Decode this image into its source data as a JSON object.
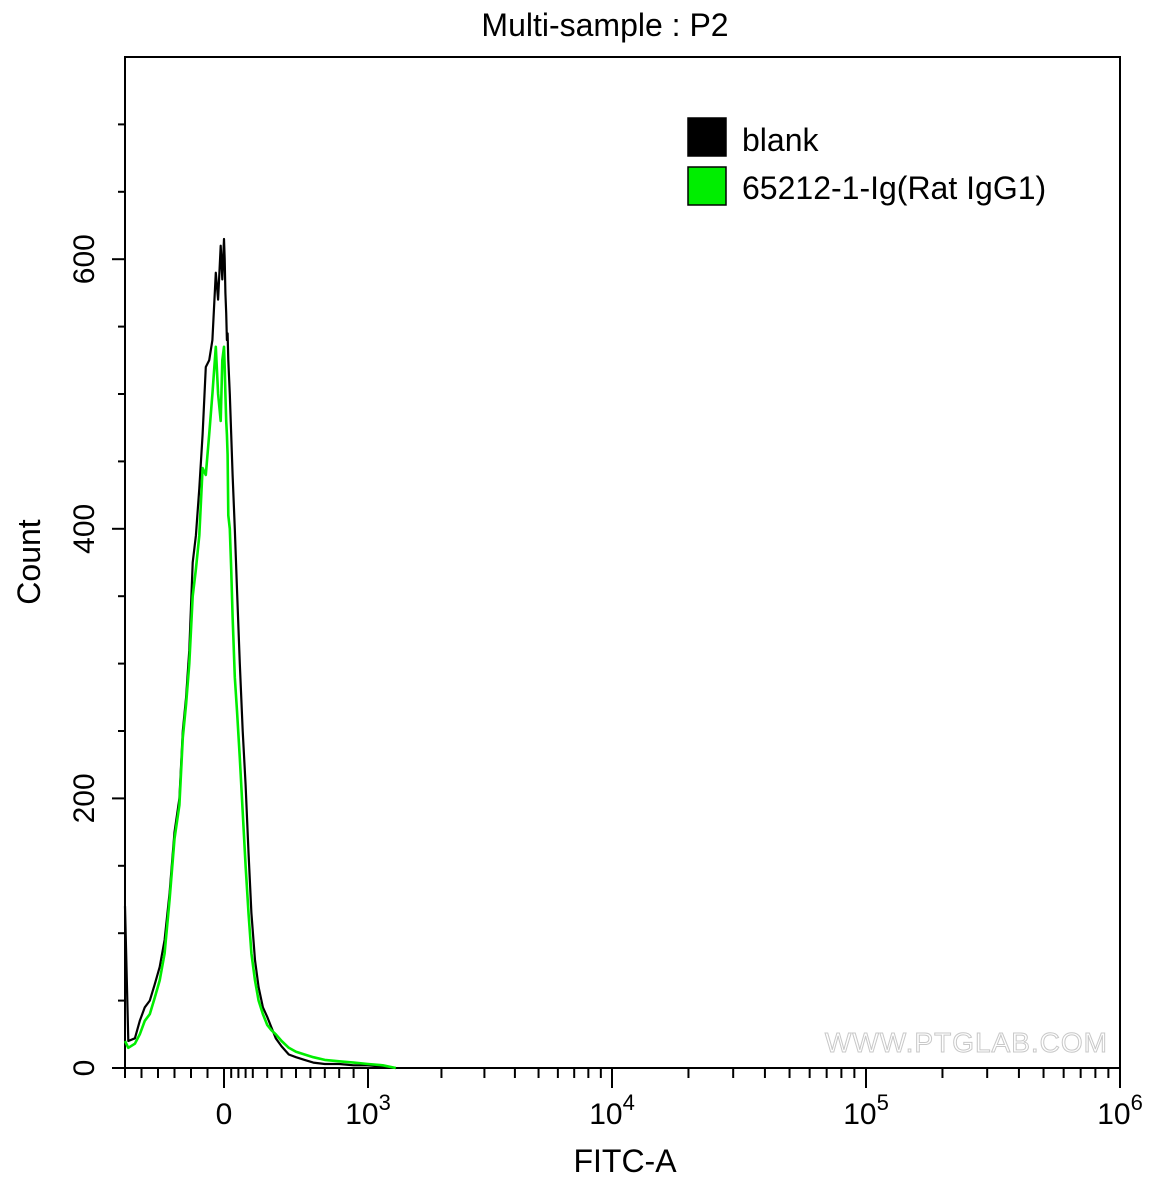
{
  "chart_data": {
    "type": "line",
    "title": "Multi-sample : P2",
    "xlabel": "FITC-A",
    "ylabel": "Count",
    "x_scale": "biexponential",
    "xlim": [
      -300,
      1000000
    ],
    "ylim": [
      0,
      750
    ],
    "x_ticks": [
      {
        "value": 0,
        "label": "0"
      },
      {
        "value": 1000,
        "label": "10",
        "sup": "3"
      },
      {
        "value": 10000,
        "label": "10",
        "sup": "4"
      },
      {
        "value": 100000,
        "label": "10",
        "sup": "5"
      },
      {
        "value": 1000000,
        "label": "10",
        "sup": "6"
      }
    ],
    "y_ticks": [
      0,
      200,
      400,
      600
    ],
    "grid": false,
    "legend_position": "top-right",
    "watermark": "WWW.PTGLAB.COM",
    "series": [
      {
        "name": "blank",
        "color": "#000000",
        "points": [
          [
            -300,
            120
          ],
          [
            -290,
            20
          ],
          [
            -270,
            22
          ],
          [
            -255,
            35
          ],
          [
            -240,
            45
          ],
          [
            -225,
            50
          ],
          [
            -210,
            62
          ],
          [
            -195,
            75
          ],
          [
            -180,
            95
          ],
          [
            -165,
            130
          ],
          [
            -150,
            175
          ],
          [
            -135,
            200
          ],
          [
            -125,
            250
          ],
          [
            -115,
            275
          ],
          [
            -105,
            310
          ],
          [
            -95,
            375
          ],
          [
            -85,
            395
          ],
          [
            -75,
            430
          ],
          [
            -65,
            470
          ],
          [
            -55,
            520
          ],
          [
            -45,
            525
          ],
          [
            -35,
            540
          ],
          [
            -25,
            590
          ],
          [
            -18,
            570
          ],
          [
            -10,
            610
          ],
          [
            -5,
            585
          ],
          [
            0,
            615
          ],
          [
            5,
            600
          ],
          [
            10,
            575
          ],
          [
            15,
            560
          ],
          [
            20,
            540
          ],
          [
            25,
            545
          ],
          [
            30,
            525
          ],
          [
            40,
            500
          ],
          [
            50,
            470
          ],
          [
            60,
            440
          ],
          [
            75,
            400
          ],
          [
            90,
            355
          ],
          [
            110,
            300
          ],
          [
            130,
            250
          ],
          [
            150,
            210
          ],
          [
            170,
            160
          ],
          [
            190,
            115
          ],
          [
            215,
            80
          ],
          [
            240,
            60
          ],
          [
            270,
            45
          ],
          [
            300,
            38
          ],
          [
            330,
            30
          ],
          [
            360,
            22
          ],
          [
            400,
            16
          ],
          [
            450,
            10
          ],
          [
            500,
            8
          ],
          [
            560,
            6
          ],
          [
            620,
            4
          ],
          [
            700,
            3
          ],
          [
            800,
            3
          ],
          [
            900,
            2
          ],
          [
            1000,
            2
          ],
          [
            1150,
            1
          ],
          [
            1300,
            0
          ]
        ]
      },
      {
        "name": "65212-1-Ig(Rat IgG1)",
        "color": "#00ee00",
        "points": [
          [
            -300,
            20
          ],
          [
            -290,
            15
          ],
          [
            -270,
            18
          ],
          [
            -255,
            25
          ],
          [
            -240,
            35
          ],
          [
            -225,
            40
          ],
          [
            -210,
            52
          ],
          [
            -195,
            65
          ],
          [
            -180,
            85
          ],
          [
            -165,
            125
          ],
          [
            -150,
            170
          ],
          [
            -135,
            195
          ],
          [
            -125,
            245
          ],
          [
            -115,
            270
          ],
          [
            -105,
            300
          ],
          [
            -95,
            350
          ],
          [
            -85,
            370
          ],
          [
            -75,
            395
          ],
          [
            -65,
            445
          ],
          [
            -55,
            440
          ],
          [
            -45,
            470
          ],
          [
            -35,
            500
          ],
          [
            -25,
            535
          ],
          [
            -18,
            500
          ],
          [
            -10,
            480
          ],
          [
            -5,
            525
          ],
          [
            0,
            535
          ],
          [
            5,
            520
          ],
          [
            10,
            500
          ],
          [
            15,
            480
          ],
          [
            20,
            470
          ],
          [
            25,
            455
          ],
          [
            30,
            410
          ],
          [
            40,
            400
          ],
          [
            50,
            370
          ],
          [
            60,
            335
          ],
          [
            75,
            290
          ],
          [
            90,
            265
          ],
          [
            110,
            230
          ],
          [
            130,
            190
          ],
          [
            150,
            150
          ],
          [
            170,
            115
          ],
          [
            190,
            85
          ],
          [
            215,
            65
          ],
          [
            240,
            50
          ],
          [
            270,
            40
          ],
          [
            300,
            32
          ],
          [
            330,
            28
          ],
          [
            360,
            25
          ],
          [
            400,
            20
          ],
          [
            450,
            15
          ],
          [
            500,
            12
          ],
          [
            560,
            10
          ],
          [
            620,
            8
          ],
          [
            700,
            6
          ],
          [
            800,
            5
          ],
          [
            900,
            4
          ],
          [
            1000,
            3
          ],
          [
            1150,
            2
          ],
          [
            1300,
            0
          ]
        ]
      }
    ]
  }
}
